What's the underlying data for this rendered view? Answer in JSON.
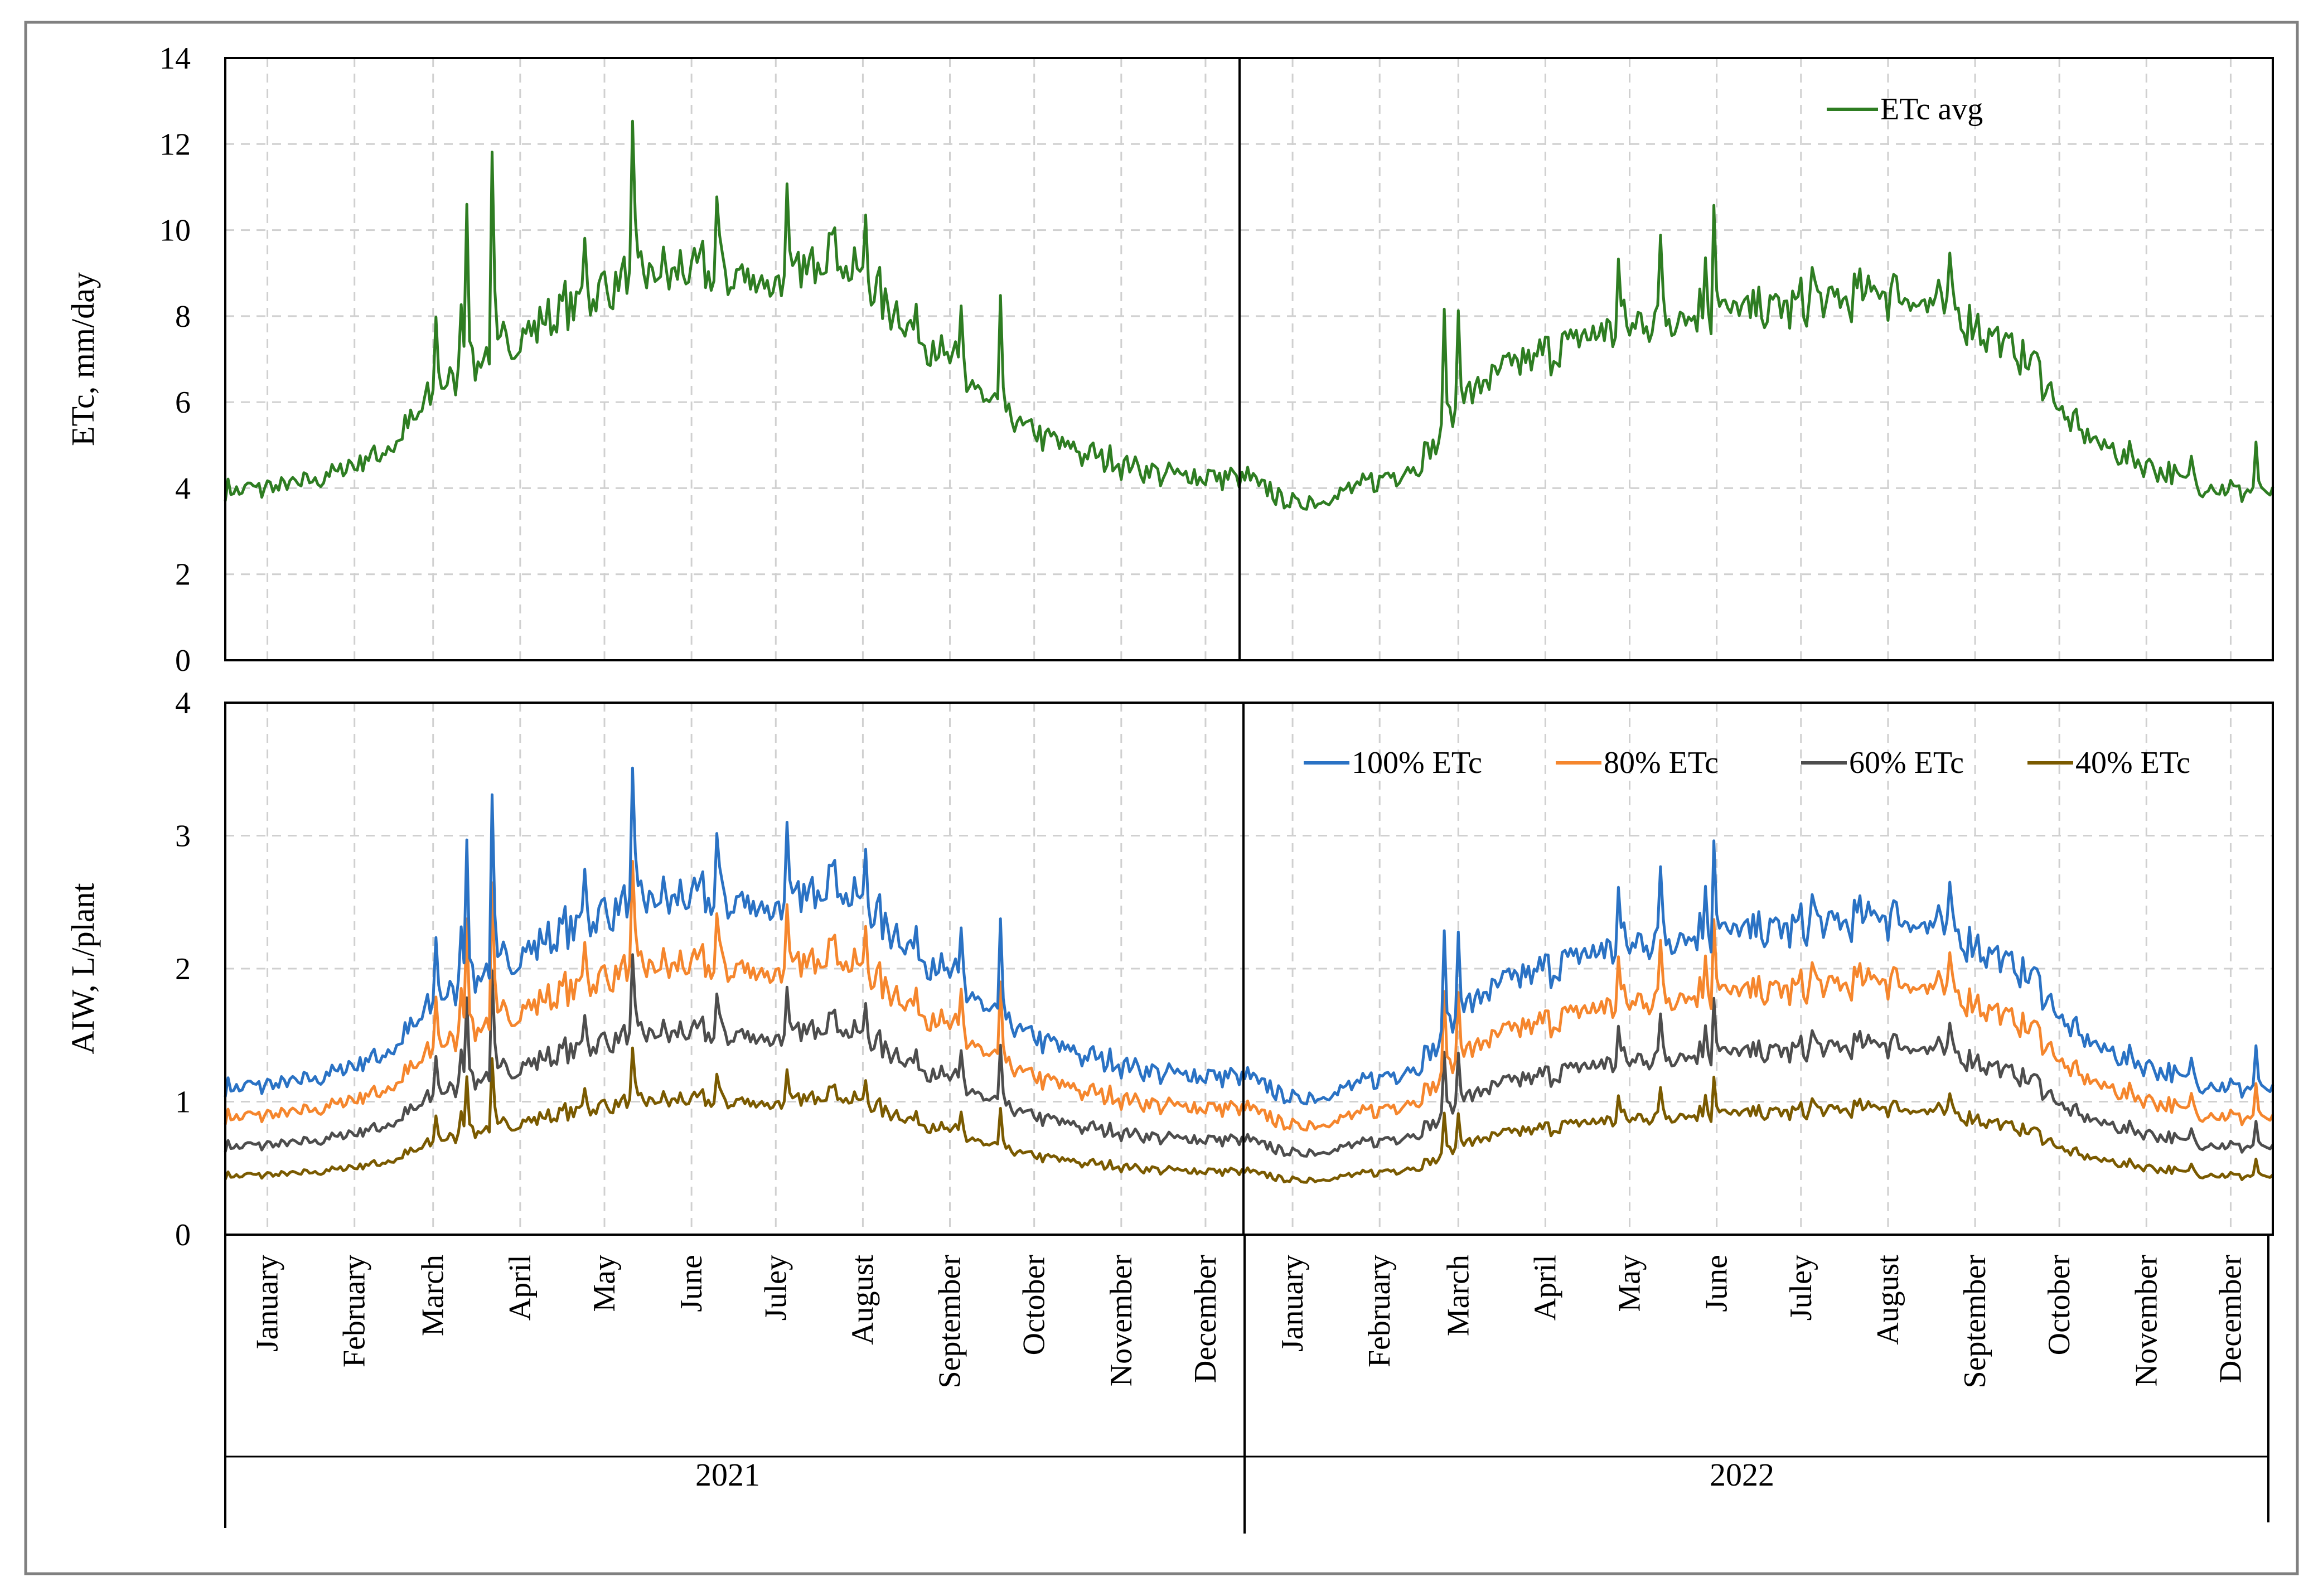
{
  "colors": {
    "etc_avg": "#2e7d22",
    "etc_100": "#2a72c4",
    "etc_80": "#f5862d",
    "etc_60": "#4d4d4d",
    "etc_40": "#7a5a00",
    "grid": "#d0d0d0",
    "frame": "#808080"
  },
  "years": [
    "2021",
    "2022"
  ],
  "months": [
    "January",
    "February",
    "March",
    "April",
    "May",
    "June",
    "Juley",
    "August",
    "September",
    "October",
    "November",
    "December"
  ],
  "chart_data": [
    {
      "type": "line",
      "title": "",
      "xlabel": "",
      "ylabel": "ETc, mm/day",
      "ylim": [
        0,
        14
      ],
      "yticks": [
        "0",
        "2",
        "4",
        "6",
        "8",
        "10",
        "12",
        "14"
      ],
      "grid": true,
      "legend_position": "top-right",
      "x_unit": "day index over 2021-2022 (0-729)",
      "series": [
        {
          "name": "ETc avg",
          "color_key": "etc_avg",
          "profile": [
            [
              0,
              3.9
            ],
            [
              30,
              4.1
            ],
            [
              59,
              4.9
            ],
            [
              75,
              6.2
            ],
            [
              90,
              6.9
            ],
            [
              120,
              8.1
            ],
            [
              145,
              8.9
            ],
            [
              170,
              9.0
            ],
            [
              200,
              8.7
            ],
            [
              215,
              9.5
            ],
            [
              228,
              8.7
            ],
            [
              260,
              6.8
            ],
            [
              273,
              5.8
            ],
            [
              290,
              5.2
            ],
            [
              305,
              4.8
            ],
            [
              334,
              4.3
            ],
            [
              364,
              4.2
            ],
            [
              380,
              3.6
            ],
            [
              395,
              3.8
            ],
            [
              424,
              4.5
            ],
            [
              432,
              5.1
            ],
            [
              440,
              6.0
            ],
            [
              452,
              6.6
            ],
            [
              485,
              7.5
            ],
            [
              515,
              8.0
            ],
            [
              545,
              8.1
            ],
            [
              575,
              8.3
            ],
            [
              590,
              8.6
            ],
            [
              615,
              8.1
            ],
            [
              645,
              6.8
            ],
            [
              656,
              5.5
            ],
            [
              670,
              4.9
            ],
            [
              700,
              4.1
            ],
            [
              729,
              3.8
            ]
          ],
          "spikes": [
            [
              75,
              2.0
            ],
            [
              84,
              2.0
            ],
            [
              86,
              4.0
            ],
            [
              95,
              4.5
            ],
            [
              128,
              1.6
            ],
            [
              145,
              3.3
            ],
            [
              175,
              1.6
            ],
            [
              200,
              2.0
            ],
            [
              215,
              1.2
            ],
            [
              228,
              1.8
            ],
            [
              262,
              1.5
            ],
            [
              276,
              2.8
            ],
            [
              434,
              2.6
            ],
            [
              439,
              2.4
            ],
            [
              496,
              1.5
            ],
            [
              511,
              1.6
            ],
            [
              527,
              1.5
            ],
            [
              530,
              2.6
            ],
            [
              565,
              1.0
            ],
            [
              614,
              1.0
            ],
            [
              700,
              0.6
            ],
            [
              723,
              1.3
            ]
          ],
          "noise_amp": 1.0,
          "seed": 7
        }
      ]
    },
    {
      "type": "line",
      "title": "",
      "xlabel": "",
      "ylabel": "AIW, L/plant",
      "ylim": [
        0,
        4
      ],
      "yticks": [
        "0",
        "1",
        "2",
        "3",
        "4"
      ],
      "grid": true,
      "legend_position": "top-right",
      "x_unit": "day index over 2021-2022 (0-729)",
      "base_series": "ETc avg",
      "aiw_per_etc_mm": 0.28,
      "series": [
        {
          "name": "100% ETc",
          "color_key": "etc_100",
          "fraction": 1.0
        },
        {
          "name": "80% ETc",
          "color_key": "etc_80",
          "fraction": 0.8
        },
        {
          "name": "60% ETc",
          "color_key": "etc_60",
          "fraction": 0.6
        },
        {
          "name": "40% ETc",
          "color_key": "etc_40",
          "fraction": 0.4
        }
      ]
    }
  ]
}
